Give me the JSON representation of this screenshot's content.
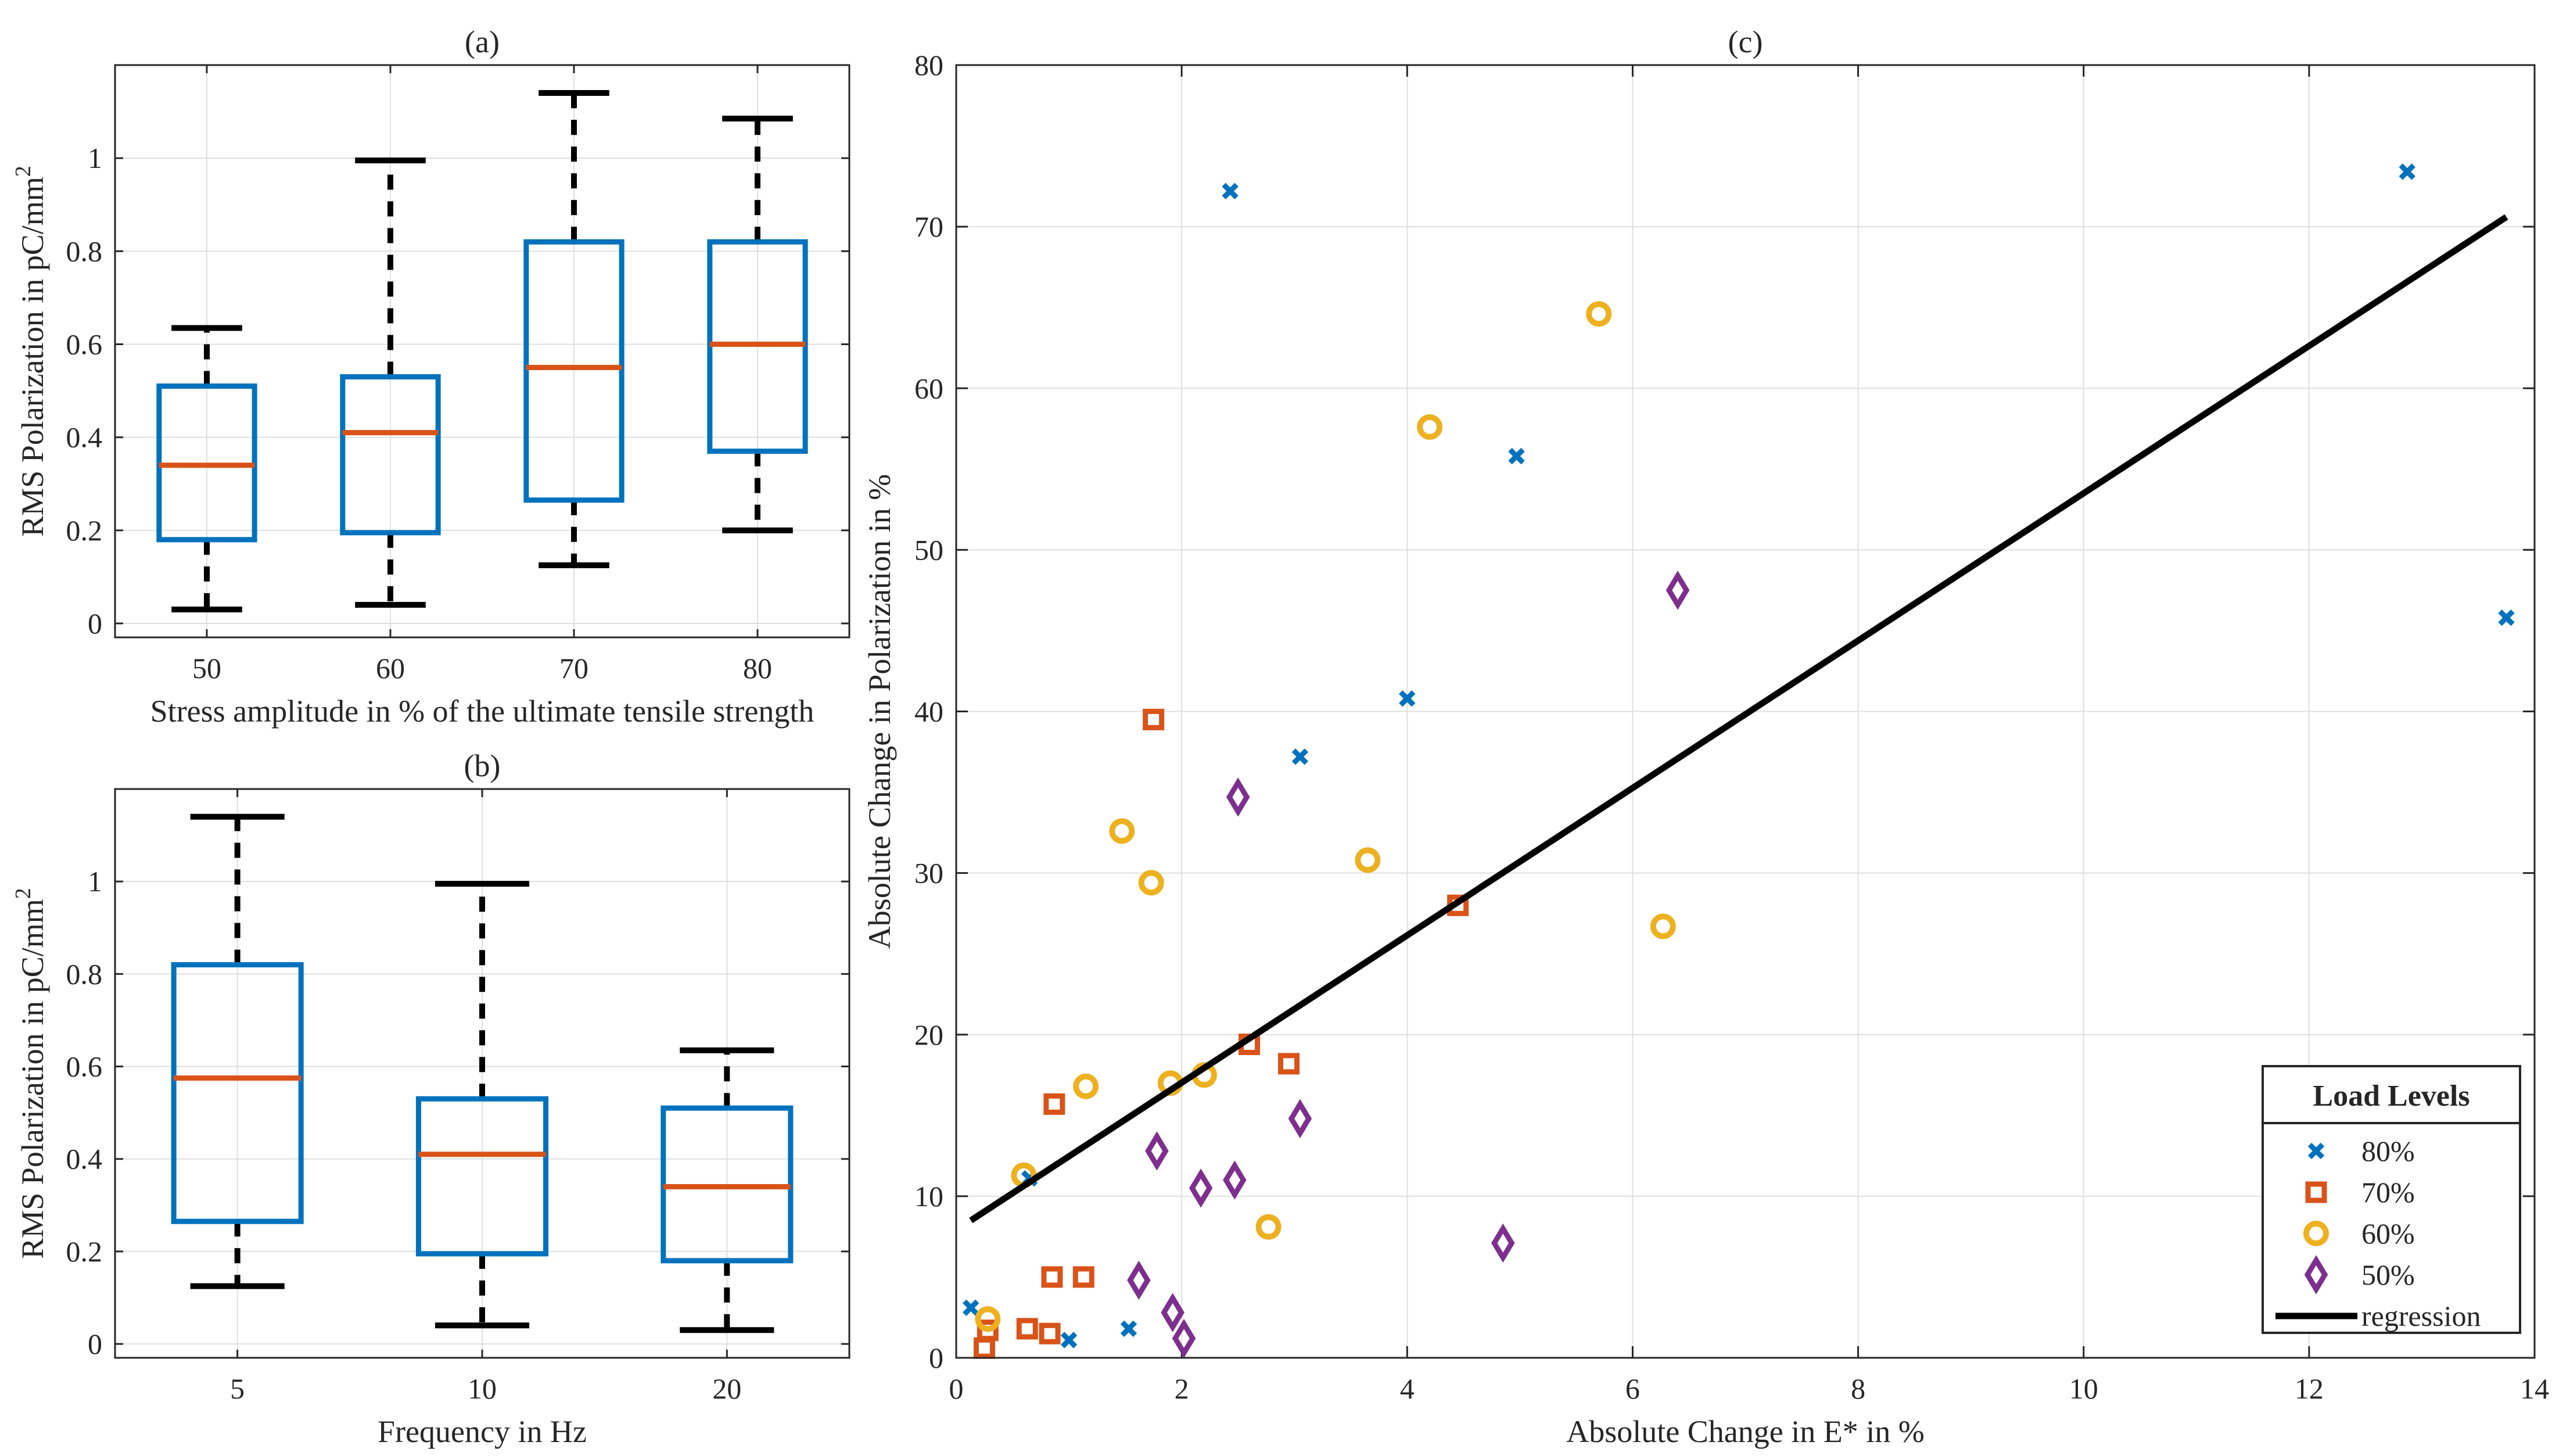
{
  "chart_data": [
    {
      "id": "a",
      "type": "box",
      "title": "(a)",
      "xlabel": "Stress amplitude in % of the ultimate tensile strength",
      "ylabel": "RMS Polarization in pC/mm",
      "ylabel_sup": "2",
      "ylim": [
        -0.03,
        1.2
      ],
      "yticks": [
        0,
        0.2,
        0.4,
        0.6,
        0.8,
        1
      ],
      "ytick_labels": [
        "0",
        "0.2",
        "0.4",
        "0.6",
        "0.8",
        "1"
      ],
      "grid": true,
      "categories": [
        "50",
        "60",
        "70",
        "80"
      ],
      "boxes": [
        {
          "whisker_low": 0.03,
          "q1": 0.18,
          "median": 0.34,
          "q3": 0.51,
          "whisker_high": 0.635
        },
        {
          "whisker_low": 0.04,
          "q1": 0.195,
          "median": 0.41,
          "q3": 0.53,
          "whisker_high": 0.995
        },
        {
          "whisker_low": 0.125,
          "q1": 0.265,
          "median": 0.55,
          "q3": 0.82,
          "whisker_high": 1.14
        },
        {
          "whisker_low": 0.2,
          "q1": 0.37,
          "median": 0.6,
          "q3": 0.82,
          "whisker_high": 1.085
        }
      ]
    },
    {
      "id": "b",
      "type": "box",
      "title": "(b)",
      "xlabel": "Frequency in Hz",
      "ylabel": "RMS Polarization in pC/mm",
      "ylabel_sup": "2",
      "ylim": [
        -0.03,
        1.2
      ],
      "yticks": [
        0,
        0.2,
        0.4,
        0.6,
        0.8,
        1
      ],
      "ytick_labels": [
        "0",
        "0.2",
        "0.4",
        "0.6",
        "0.8",
        "1"
      ],
      "grid": true,
      "categories": [
        "5",
        "10",
        "20"
      ],
      "boxes": [
        {
          "whisker_low": 0.125,
          "q1": 0.265,
          "median": 0.575,
          "q3": 0.82,
          "whisker_high": 1.14
        },
        {
          "whisker_low": 0.04,
          "q1": 0.195,
          "median": 0.41,
          "q3": 0.53,
          "whisker_high": 0.995
        },
        {
          "whisker_low": 0.03,
          "q1": 0.18,
          "median": 0.34,
          "q3": 0.51,
          "whisker_high": 0.635
        }
      ]
    },
    {
      "id": "c",
      "type": "scatter",
      "title": "(c)",
      "xlabel": "Absolute Change in E* in %",
      "ylabel": "Absolute Change in Polarization in %",
      "xlim": [
        0,
        14
      ],
      "ylim": [
        0,
        80
      ],
      "xticks": [
        0,
        2,
        4,
        6,
        8,
        10,
        12,
        14
      ],
      "yticks": [
        0,
        10,
        20,
        30,
        40,
        50,
        60,
        70,
        80
      ],
      "xtick_labels": [
        "0",
        "2",
        "4",
        "6",
        "8",
        "10",
        "12",
        "14"
      ],
      "ytick_labels": [
        "0",
        "10",
        "20",
        "30",
        "40",
        "50",
        "60",
        "70",
        "80"
      ],
      "grid": true,
      "legend": {
        "title": "Load Levels",
        "position": "bottom-right"
      },
      "series": [
        {
          "name": "80%",
          "marker": "x",
          "color": "#0072BD",
          "points": [
            [
              0.13,
              3.1
            ],
            [
              0.65,
              11.1
            ],
            [
              1.0,
              1.1
            ],
            [
              1.53,
              1.8
            ],
            [
              2.43,
              72.2
            ],
            [
              3.05,
              37.2
            ],
            [
              4.0,
              40.8
            ],
            [
              4.97,
              55.8
            ],
            [
              12.87,
              73.4
            ],
            [
              13.75,
              45.8
            ]
          ]
        },
        {
          "name": "70%",
          "marker": "square",
          "color": "#D95319",
          "points": [
            [
              0.25,
              0.6
            ],
            [
              0.28,
              1.7
            ],
            [
              0.63,
              1.8
            ],
            [
              0.83,
              1.5
            ],
            [
              0.85,
              5.0
            ],
            [
              0.87,
              15.7
            ],
            [
              1.13,
              5.0
            ],
            [
              1.75,
              39.5
            ],
            [
              2.6,
              19.4
            ],
            [
              2.95,
              18.2
            ],
            [
              4.45,
              28.0
            ]
          ]
        },
        {
          "name": "60%",
          "marker": "circle",
          "color": "#EDB120",
          "points": [
            [
              0.28,
              2.4
            ],
            [
              0.6,
              11.3
            ],
            [
              1.15,
              16.8
            ],
            [
              1.47,
              32.6
            ],
            [
              1.73,
              29.4
            ],
            [
              1.9,
              17.0
            ],
            [
              2.2,
              17.5
            ],
            [
              2.77,
              8.1
            ],
            [
              3.65,
              30.8
            ],
            [
              4.2,
              57.6
            ],
            [
              5.7,
              64.6
            ],
            [
              6.27,
              26.7
            ]
          ]
        },
        {
          "name": "50%",
          "marker": "diamond",
          "color": "#7E2F8E",
          "points": [
            [
              1.62,
              4.8
            ],
            [
              1.78,
              12.8
            ],
            [
              1.92,
              2.8
            ],
            [
              2.02,
              1.2
            ],
            [
              2.17,
              10.5
            ],
            [
              2.47,
              11.0
            ],
            [
              2.5,
              34.7
            ],
            [
              3.05,
              14.8
            ],
            [
              4.85,
              7.1
            ],
            [
              6.4,
              47.5
            ]
          ]
        },
        {
          "name": "regression",
          "type": "line",
          "color": "#000000",
          "points": [
            [
              0.13,
              8.5
            ],
            [
              13.75,
              70.6
            ]
          ]
        }
      ]
    }
  ]
}
